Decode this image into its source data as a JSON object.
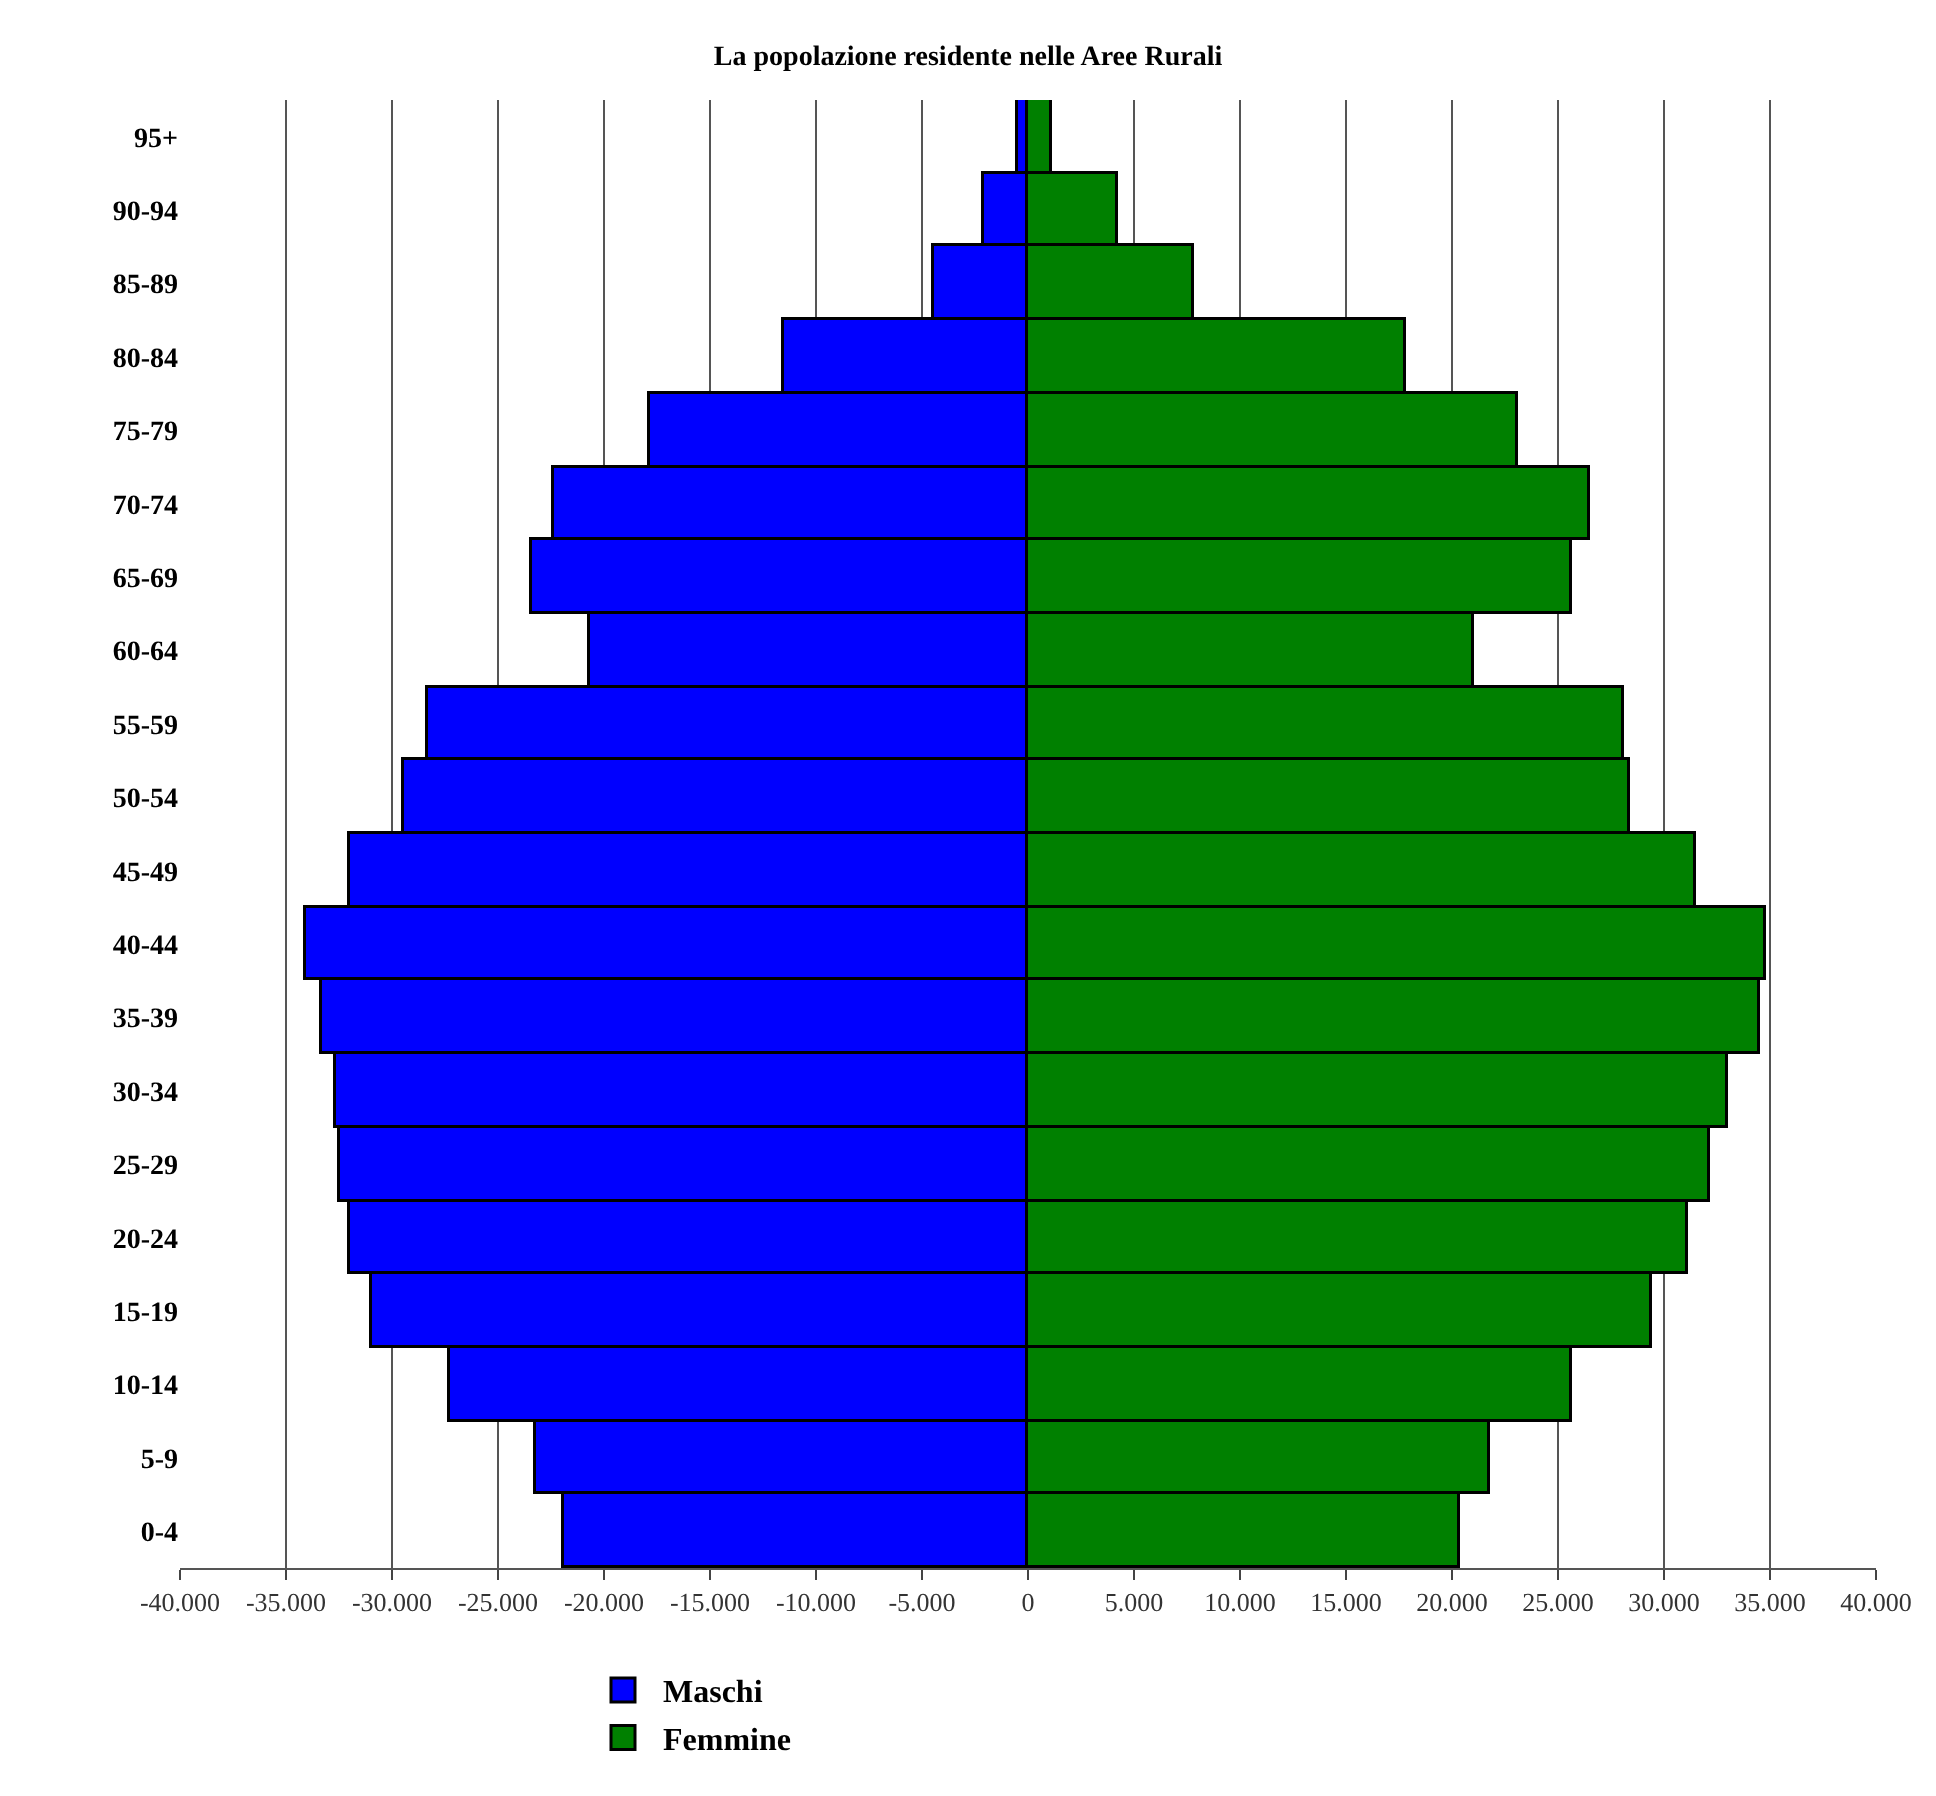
{
  "chart_data": {
    "type": "bar",
    "orientation": "horizontal",
    "stacked": true,
    "title": "La popolazione residente nelle Aree Rurali",
    "categories": [
      "95+",
      "90-94",
      "85-89",
      "80-84",
      "75-79",
      "70-74",
      "65-69",
      "60-64",
      "55-59",
      "50-54",
      "45-49",
      "40-44",
      "35-39",
      "30-34",
      "25-29",
      "20-24",
      "15-19",
      "10-14",
      "5-9",
      "0-4"
    ],
    "series": [
      {
        "name": "Maschi",
        "color": "#0000ff",
        "values": [
          -500,
          -2100,
          -4400,
          -11500,
          -17800,
          -22400,
          -23400,
          -20700,
          -28300,
          -29400,
          -32000,
          -34100,
          -33300,
          -32600,
          -32500,
          -32000,
          -30900,
          -27300,
          -23200,
          -21900
        ]
      },
      {
        "name": "Femmine",
        "color": "#008000",
        "values": [
          1100,
          4200,
          7800,
          17800,
          23100,
          26500,
          25700,
          21000,
          28100,
          28400,
          31500,
          34800,
          34500,
          33000,
          32200,
          31100,
          29400,
          25700,
          21800,
          20400
        ]
      }
    ],
    "xlim": [
      -40000,
      40000
    ],
    "xticks": [
      {
        "value": -40000,
        "label": "-40.000"
      },
      {
        "value": -35000,
        "label": "-35.000"
      },
      {
        "value": -30000,
        "label": "-30.000"
      },
      {
        "value": -25000,
        "label": "-25.000"
      },
      {
        "value": -20000,
        "label": "-20.000"
      },
      {
        "value": -15000,
        "label": "-15.000"
      },
      {
        "value": -10000,
        "label": "-10.000"
      },
      {
        "value": -5000,
        "label": "-5.000"
      },
      0,
      {
        "value": 5000,
        "label": "5.000"
      },
      {
        "value": 10000,
        "label": "10.000"
      },
      {
        "value": 15000,
        "label": "15.000"
      },
      {
        "value": 20000,
        "label": "20.000"
      },
      {
        "value": 25000,
        "label": "25.000"
      },
      {
        "value": 30000,
        "label": "30.000"
      },
      {
        "value": 35000,
        "label": "35.000"
      },
      {
        "value": 40000,
        "label": "40.000"
      }
    ],
    "grid": "x",
    "legend": "bottom"
  }
}
